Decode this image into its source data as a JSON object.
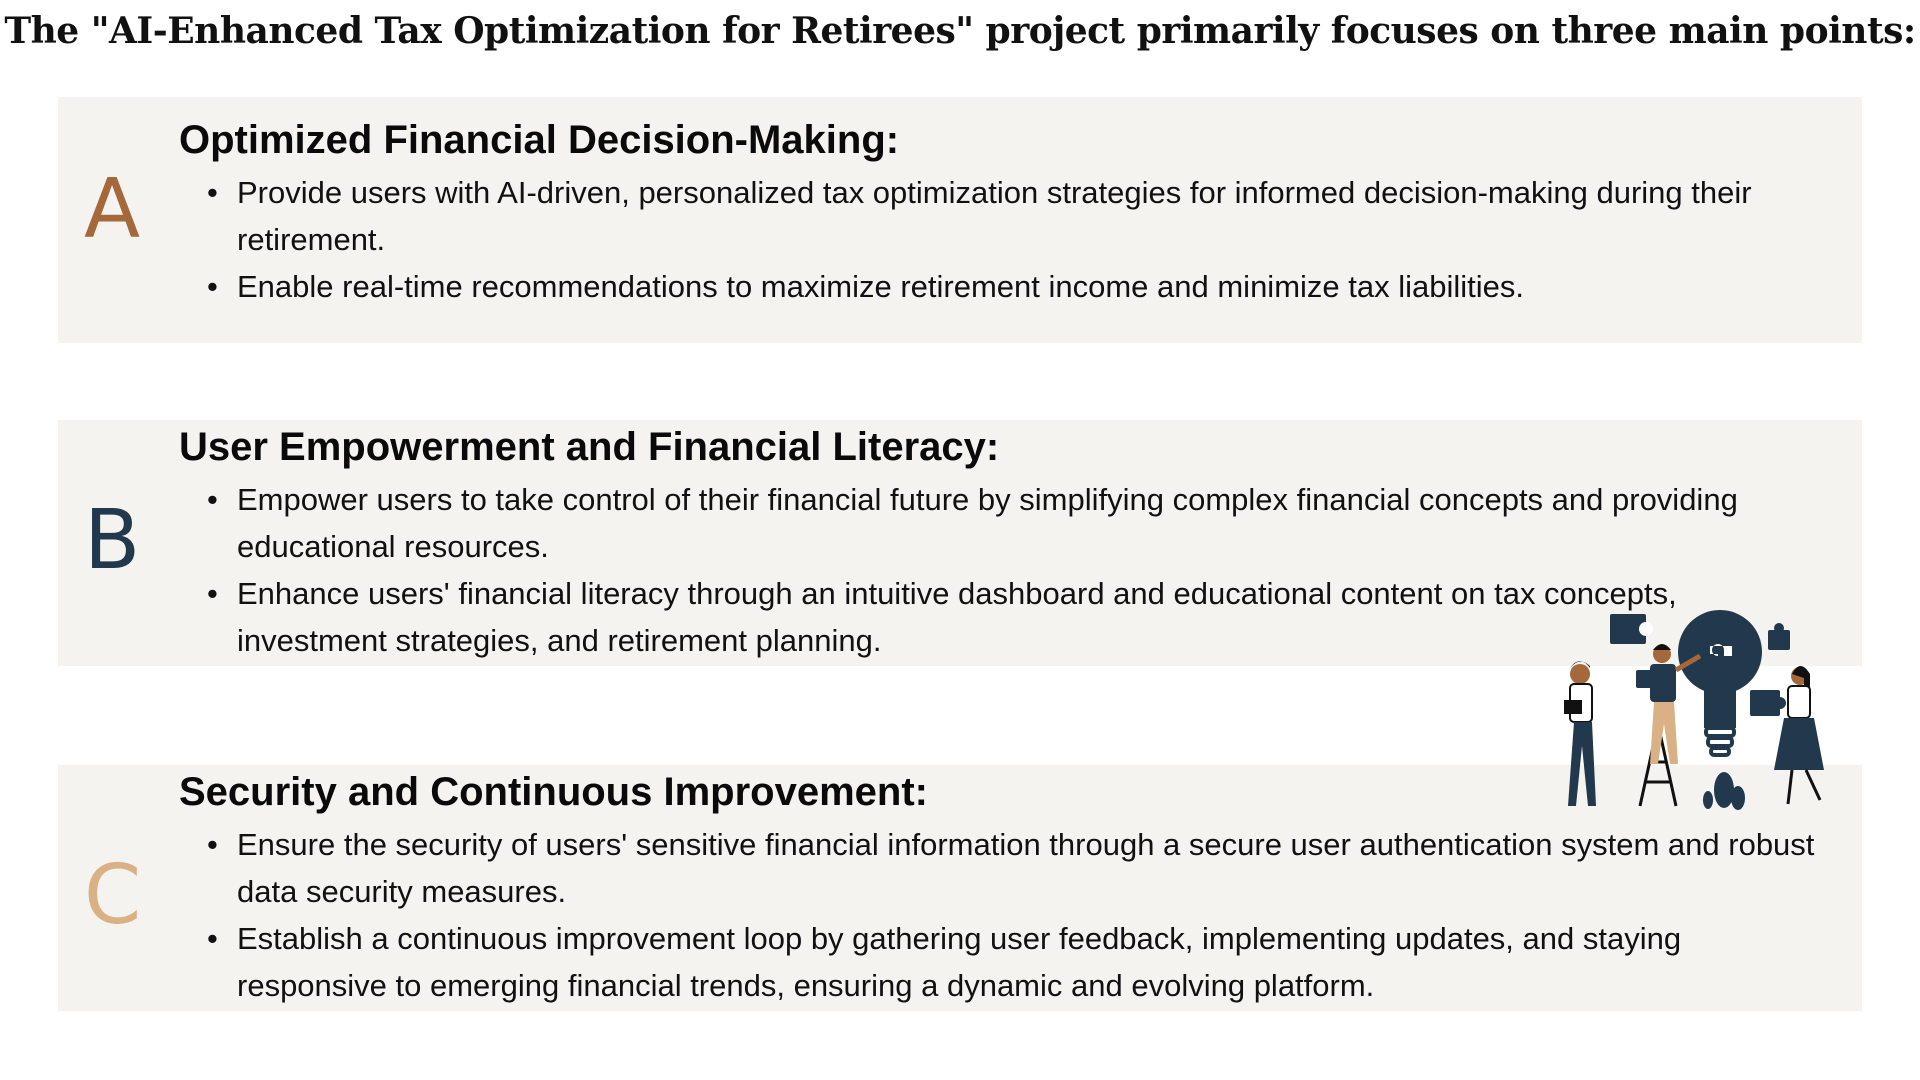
{
  "title": "The \"AI-Enhanced Tax Optimization for Retirees\" project primarily focuses on three main points:",
  "sections": [
    {
      "letter": "A",
      "heading": "Optimized Financial Decision-Making:",
      "points": [
        "Provide users with AI-driven, personalized tax optimization strategies for informed decision-making during their retirement.",
        "Enable real-time recommendations to maximize retirement income and minimize tax liabilities."
      ]
    },
    {
      "letter": "B",
      "heading": "User Empowerment and Financial Literacy:",
      "points": [
        "Empower users to take control of their financial future by simplifying complex financial concepts and providing educational resources.",
        "Enhance users' financial literacy through an intuitive dashboard and educational content on tax concepts, investment strategies, and retirement planning."
      ]
    },
    {
      "letter": "C",
      "heading": "Security and Continuous Improvement:",
      "points": [
        "Ensure the security of users' sensitive financial information through a secure user authentication system and robust data security measures.",
        "Establish a continuous improvement loop by gathering user feedback, implementing updates, and staying responsive to emerging financial trends, ensuring a dynamic and evolving platform."
      ]
    }
  ],
  "colors": {
    "card_bg": "#f4f3ef",
    "letter_a": "#a5683a",
    "letter_b": "#22384c",
    "letter_c": "#d9b184",
    "navy": "#22384c",
    "tan": "#d9b184"
  },
  "illustration": {
    "icon": "teamwork-lightbulb-puzzle-icon"
  }
}
